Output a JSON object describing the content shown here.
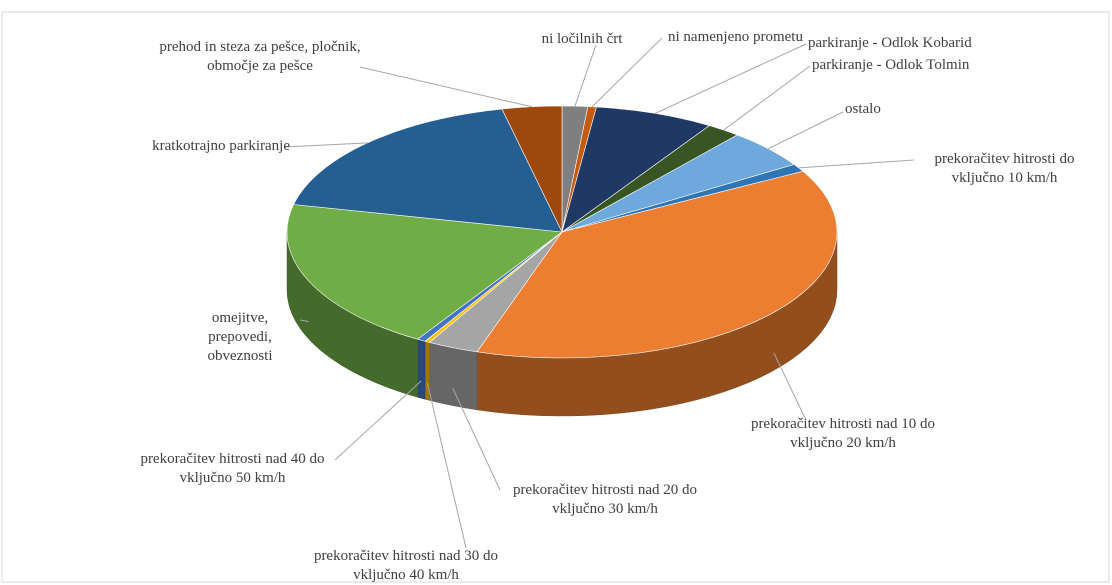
{
  "chart_data": {
    "type": "pie3d",
    "categories": [
      "ni ločilnih črt",
      "ni namenjeno prometu",
      "parkiranje - Odlok Kobarid",
      "parkiranje - Odlok Tolmin",
      "ostalo",
      "prekoračitev hitrosti do vključno 10 km/h",
      "prekoračitev hitrosti nad 10 do vključno 20 km/h",
      "prekoračitev hitrosti nad 20 do vključno 30 km/h",
      "prekoračitev hitrosti nad 30 do vključno 40 km/h",
      "prekoračitev hitrosti nad 40 do vključno 50 km/h",
      "omejitve, prepovedi, obveznosti",
      "kratkotrajno parkiranje",
      "prehod in steza za pešce, pločnik, območje za pešce"
    ],
    "values": [
      1.5,
      0.5,
      7,
      2,
      5,
      1,
      38,
      3,
      0.3,
      0.5,
      19.7,
      18,
      3.5
    ],
    "colors": [
      "#7f7f7f",
      "#c55a11",
      "#203864",
      "#375623",
      "#6fa8dc",
      "#2e75b6",
      "#ed7d31",
      "#a5a5a5",
      "#ffc000",
      "#4472c4",
      "#70ad47",
      "#255e91",
      "#9e480e"
    ]
  }
}
